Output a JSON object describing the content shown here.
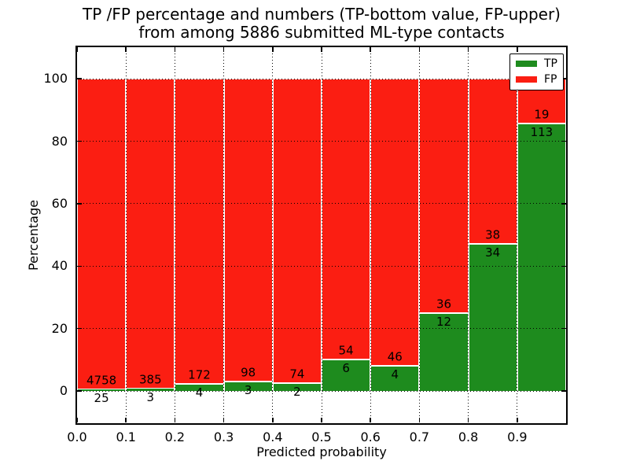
{
  "title": {
    "line1": "TP /FP percentage and numbers (TP-bottom value, FP-upper)",
    "line2": "from among 5886 submitted ML-type contacts"
  },
  "axes": {
    "xlabel": "Predicted probability",
    "ylabel": "Percentage"
  },
  "legend": {
    "position": "upper right",
    "items": [
      {
        "label": "TP",
        "color": "#1e8b1e"
      },
      {
        "label": "FP",
        "color": "#fb1e12"
      }
    ]
  },
  "chart_data": {
    "type": "bar",
    "stacked": true,
    "normalized_to_percent": true,
    "title": "TP /FP percentage and numbers (TP-bottom value, FP-upper) from among 5886 submitted ML-type contacts",
    "xlabel": "Predicted probability",
    "ylabel": "Percentage",
    "xlim": [
      0.0,
      1.0
    ],
    "ylim": [
      -10.3,
      110.1
    ],
    "grid": "dotted",
    "legend_position": "upper right",
    "total_contacts": 5886,
    "colors": {
      "TP": "#1e8b1e",
      "FP": "#fb1e12",
      "edge": "#ffffff"
    },
    "x_ticks": [
      {
        "v": 0.0,
        "label": "0.0"
      },
      {
        "v": 0.1,
        "label": "0.1"
      },
      {
        "v": 0.2,
        "label": "0.2"
      },
      {
        "v": 0.3,
        "label": "0.3"
      },
      {
        "v": 0.4,
        "label": "0.4"
      },
      {
        "v": 0.5,
        "label": "0.5"
      },
      {
        "v": 0.6,
        "label": "0.6"
      },
      {
        "v": 0.7,
        "label": "0.7"
      },
      {
        "v": 0.8,
        "label": "0.8"
      },
      {
        "v": 0.9,
        "label": "0.9"
      }
    ],
    "y_ticks": [
      {
        "v": 0,
        "label": "0"
      },
      {
        "v": 20,
        "label": "20"
      },
      {
        "v": 40,
        "label": "40"
      },
      {
        "v": 60,
        "label": "60"
      },
      {
        "v": 80,
        "label": "80"
      },
      {
        "v": 100,
        "label": "100"
      }
    ],
    "bins": [
      {
        "x0": 0.0,
        "x1": 0.1,
        "tp": 25,
        "fp": 4758
      },
      {
        "x0": 0.1,
        "x1": 0.2,
        "tp": 3,
        "fp": 385
      },
      {
        "x0": 0.2,
        "x1": 0.3,
        "tp": 4,
        "fp": 172
      },
      {
        "x0": 0.3,
        "x1": 0.4,
        "tp": 3,
        "fp": 98
      },
      {
        "x0": 0.4,
        "x1": 0.5,
        "tp": 2,
        "fp": 74
      },
      {
        "x0": 0.5,
        "x1": 0.6,
        "tp": 6,
        "fp": 54
      },
      {
        "x0": 0.6,
        "x1": 0.7,
        "tp": 4,
        "fp": 46
      },
      {
        "x0": 0.7,
        "x1": 0.8,
        "tp": 12,
        "fp": 36
      },
      {
        "x0": 0.8,
        "x1": 0.9,
        "tp": 34,
        "fp": 38
      },
      {
        "x0": 0.9,
        "x1": 1.0,
        "tp": 113,
        "fp": 19
      }
    ],
    "series": [
      {
        "name": "TP",
        "values": [
          25,
          3,
          4,
          3,
          2,
          6,
          4,
          12,
          34,
          113
        ]
      },
      {
        "name": "FP",
        "values": [
          4758,
          385,
          172,
          98,
          74,
          54,
          46,
          36,
          38,
          19
        ]
      }
    ]
  }
}
